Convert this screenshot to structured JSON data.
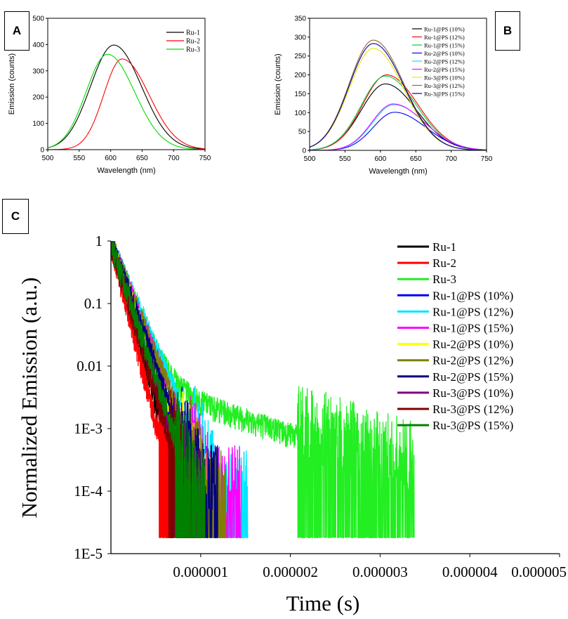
{
  "panels": {
    "a": "A",
    "b": "B",
    "c": "C"
  },
  "chart_data": [
    {
      "id": "A",
      "type": "line",
      "xlabel": "Wavelength (nm)",
      "ylabel": "Emission (counts)",
      "xlim": [
        500,
        750
      ],
      "ylim": [
        0,
        500
      ],
      "xticks": [
        500,
        550,
        600,
        650,
        700,
        750
      ],
      "yticks": [
        0,
        100,
        200,
        300,
        400,
        500
      ],
      "series": [
        {
          "name": "Ru-1",
          "color": "#000000",
          "peak_x": 605,
          "peak_y": 398,
          "width_left": 37,
          "width_right": 44
        },
        {
          "name": "Ru-2",
          "color": "#ff0000",
          "peak_x": 618,
          "peak_y": 345,
          "width_left": 29,
          "width_right": 43
        },
        {
          "name": "Ru-3",
          "color": "#00dd00",
          "peak_x": 595,
          "peak_y": 363,
          "width_left": 34,
          "width_right": 43
        }
      ]
    },
    {
      "id": "B",
      "type": "line",
      "xlabel": "Wavelength (nm)",
      "ylabel": "Emission (counts)",
      "xlim": [
        500,
        750
      ],
      "ylim": [
        0,
        350
      ],
      "xticks": [
        500,
        550,
        600,
        650,
        700,
        750
      ],
      "yticks": [
        0,
        50,
        100,
        150,
        200,
        250,
        300,
        350
      ],
      "series": [
        {
          "name": "Ru-1@PS (10%)",
          "color": "#000000",
          "peak_x": 607,
          "peak_y": 176,
          "width_left": 34,
          "width_right": 44
        },
        {
          "name": "Ru-1@PS (12%)",
          "color": "#ff0000",
          "peak_x": 609,
          "peak_y": 200,
          "width_left": 34,
          "width_right": 44
        },
        {
          "name": "Ru-1@PS (15%)",
          "color": "#00cc44",
          "peak_x": 607,
          "peak_y": 197,
          "width_left": 34,
          "width_right": 44
        },
        {
          "name": "Ru-2@PS (10%)",
          "color": "#0000ff",
          "peak_x": 620,
          "peak_y": 101,
          "width_left": 30,
          "width_right": 44
        },
        {
          "name": "Ru-2@PS (12%)",
          "color": "#00e5ff",
          "peak_x": 619,
          "peak_y": 121,
          "width_left": 30,
          "width_right": 44
        },
        {
          "name": "Ru-2@PS (15%)",
          "color": "#ff00ff",
          "peak_x": 618,
          "peak_y": 123,
          "width_left": 30,
          "width_right": 44
        },
        {
          "name": "Ru-3@PS (10%)",
          "color": "#e8e800",
          "peak_x": 590,
          "peak_y": 270,
          "width_left": 34,
          "width_right": 43
        },
        {
          "name": "Ru-3@PS (12%)",
          "color": "#996633",
          "peak_x": 590,
          "peak_y": 292,
          "width_left": 34,
          "width_right": 43
        },
        {
          "name": "Ru-3@PS (15%)",
          "color": "#0000aa",
          "peak_x": 590,
          "peak_y": 283,
          "width_left": 34,
          "width_right": 43
        }
      ]
    },
    {
      "id": "C",
      "type": "line",
      "yscale": "log",
      "xlabel": "Time (s)",
      "ylabel": "Normalized Emission (a.u.)",
      "xlim": [
        0,
        5e-06
      ],
      "ylim": [
        1e-05,
        1
      ],
      "xticks": [
        1e-06,
        2e-06,
        3e-06,
        4e-06,
        5e-06
      ],
      "xtick_labels": [
        "0.000001",
        "0.000002",
        "0.000003",
        "0.000004",
        "0.000005"
      ],
      "yticks": [
        1,
        0.1,
        0.01,
        0.001,
        0.0001,
        1e-05
      ],
      "ytick_labels": [
        "1",
        "0.1",
        "0.01",
        "1E-3",
        "1E-4",
        "1E-5"
      ],
      "noise_floor": 4e-05,
      "series": [
        {
          "name": "Ru-1",
          "color": "#000000",
          "tau": 8.5e-08,
          "cutoff": 7.5e-07
        },
        {
          "name": "Ru-2",
          "color": "#ff0000",
          "tau": 7.5e-08,
          "cutoff": 6.6e-07
        },
        {
          "name": "Ru-3",
          "color": "#22ee22",
          "tau": 1.2e-07,
          "cutoff": 3.38e-06,
          "tail": 0.008
        },
        {
          "name": "Ru-1@PS (10%)",
          "color": "#0000ff",
          "tau": 1.1e-07,
          "cutoff": 1.18e-06
        },
        {
          "name": "Ru-1@PS (12%)",
          "color": "#00e5ff",
          "tau": 1.3e-07,
          "cutoff": 1.53e-06
        },
        {
          "name": "Ru-1@PS (15%)",
          "color": "#ff00ff",
          "tau": 1.2e-07,
          "cutoff": 1.45e-06
        },
        {
          "name": "Ru-2@PS (10%)",
          "color": "#ffff00",
          "tau": 1.1e-07,
          "cutoff": 1.12e-06
        },
        {
          "name": "Ru-2@PS (12%)",
          "color": "#808000",
          "tau": 1.2e-07,
          "cutoff": 1.28e-06
        },
        {
          "name": "Ru-2@PS (15%)",
          "color": "#000080",
          "tau": 1.1e-07,
          "cutoff": 1.19e-06
        },
        {
          "name": "Ru-3@PS (10%)",
          "color": "#800080",
          "tau": 9.5e-08,
          "cutoff": 1.02e-06
        },
        {
          "name": "Ru-3@PS (12%)",
          "color": "#800000",
          "tau": 9e-08,
          "cutoff": 9.3e-07
        },
        {
          "name": "Ru-3@PS (15%)",
          "color": "#008000",
          "tau": 1e-07,
          "cutoff": 1.05e-06
        }
      ]
    }
  ]
}
